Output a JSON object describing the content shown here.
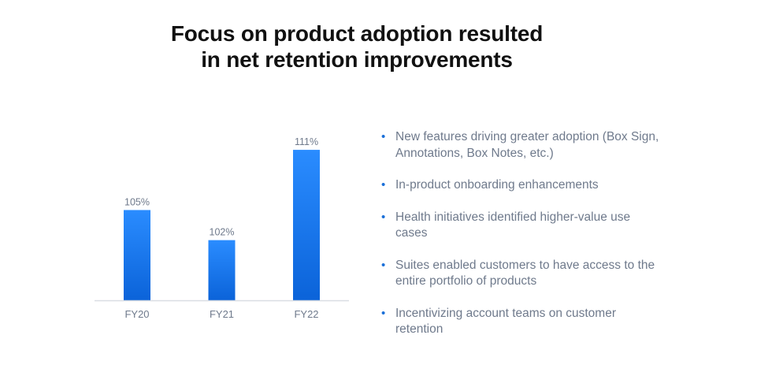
{
  "title_lines": [
    "Focus on product adoption resulted",
    "in net retention improvements"
  ],
  "chart_data": {
    "type": "bar",
    "categories": [
      "FY20",
      "FY21",
      "FY22"
    ],
    "values": [
      105,
      102,
      111
    ],
    "value_labels": [
      "105%",
      "102%",
      "111%"
    ],
    "title": "",
    "xlabel": "",
    "ylabel": "",
    "ylim": [
      96,
      111.4
    ],
    "grid": false,
    "legend": "none",
    "bar_color_top": "#2a8cff",
    "bar_color_bottom": "#0b63d9"
  },
  "bullets": [
    "New features driving greater adoption (Box Sign, Annotations, Box Notes, etc.)",
    "In-product onboarding enhancements",
    "Health initiatives identified higher-value use cases",
    "Suites enabled customers to have access to the entire portfolio of products",
    "Incentivizing account teams on customer retention"
  ],
  "colors": {
    "title": "#111111",
    "bullet_text": "#6f7a8c",
    "bullet_dot": "#1a6fd8",
    "axis": "#d9dde3",
    "label": "#6f7a8c"
  }
}
